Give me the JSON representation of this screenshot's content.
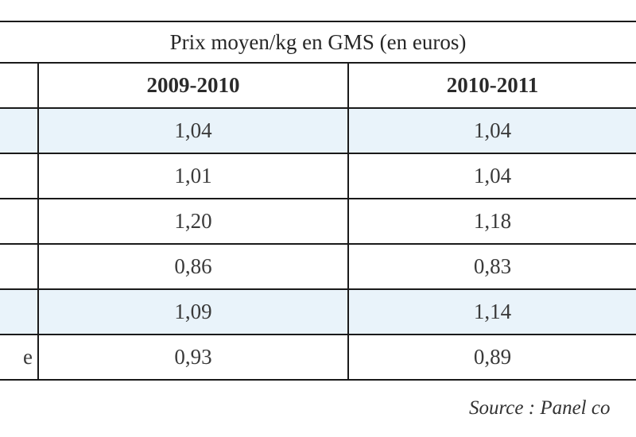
{
  "table": {
    "title": "Prix moyen/kg en GMS (en euros)",
    "columns": [
      "2009-2010",
      "2010-2011"
    ],
    "rows": [
      {
        "label": "",
        "values": [
          "1,04",
          "1,04"
        ],
        "shaded": true
      },
      {
        "label": "",
        "values": [
          "1,01",
          "1,04"
        ],
        "shaded": false
      },
      {
        "label": "",
        "values": [
          "1,20",
          "1,18"
        ],
        "shaded": false
      },
      {
        "label": "",
        "values": [
          "0,86",
          "0,83"
        ],
        "shaded": false
      },
      {
        "label": "",
        "values": [
          "1,09",
          "1,14"
        ],
        "shaded": true
      },
      {
        "label": "e",
        "values": [
          "0,93",
          "0,89"
        ],
        "shaded": false
      }
    ],
    "source": "Source : Panel co"
  },
  "colors": {
    "shaded_row": "#e9f3fa",
    "rule": "#1a1a1a"
  }
}
